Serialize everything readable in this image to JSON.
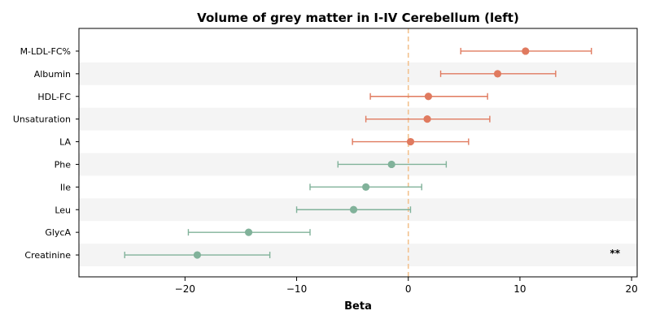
{
  "chart_data": {
    "type": "forest",
    "title": "Volume of grey matter in I-IV Cerebellum (left)",
    "xlabel": "Beta",
    "ylabel": "",
    "xlim": [
      -29.5,
      20.5
    ],
    "xticks": [
      -20,
      -10,
      0,
      10,
      20
    ],
    "xtick_labels": [
      "−20",
      "−10",
      "0",
      "10",
      "20"
    ],
    "reference_line": {
      "x": 0,
      "style": "dashed",
      "color": "#f3c28f"
    },
    "row_shading": "alternating",
    "positive_color": "#e07a5f",
    "negative_color": "#81b29a",
    "rows": [
      {
        "label": "M-LDL-FC%",
        "beta": 10.5,
        "ci_low": 4.7,
        "ci_high": 16.4,
        "annotation": ""
      },
      {
        "label": "Albumin",
        "beta": 8.0,
        "ci_low": 2.9,
        "ci_high": 13.2,
        "annotation": ""
      },
      {
        "label": "HDL-FC",
        "beta": 1.8,
        "ci_low": -3.4,
        "ci_high": 7.1,
        "annotation": ""
      },
      {
        "label": "Unsaturation",
        "beta": 1.7,
        "ci_low": -3.8,
        "ci_high": 7.3,
        "annotation": ""
      },
      {
        "label": "LA",
        "beta": 0.2,
        "ci_low": -5.0,
        "ci_high": 5.4,
        "annotation": ""
      },
      {
        "label": "Phe",
        "beta": -1.5,
        "ci_low": -6.3,
        "ci_high": 3.4,
        "annotation": ""
      },
      {
        "label": "Ile",
        "beta": -3.8,
        "ci_low": -8.8,
        "ci_high": 1.2,
        "annotation": ""
      },
      {
        "label": "Leu",
        "beta": -4.9,
        "ci_low": -10.0,
        "ci_high": 0.2,
        "annotation": ""
      },
      {
        "label": "GlycA",
        "beta": -14.3,
        "ci_low": -19.7,
        "ci_high": -8.8,
        "annotation": ""
      },
      {
        "label": "Creatinine",
        "beta": -18.9,
        "ci_low": -25.4,
        "ci_high": -12.4,
        "annotation": "**"
      }
    ]
  }
}
